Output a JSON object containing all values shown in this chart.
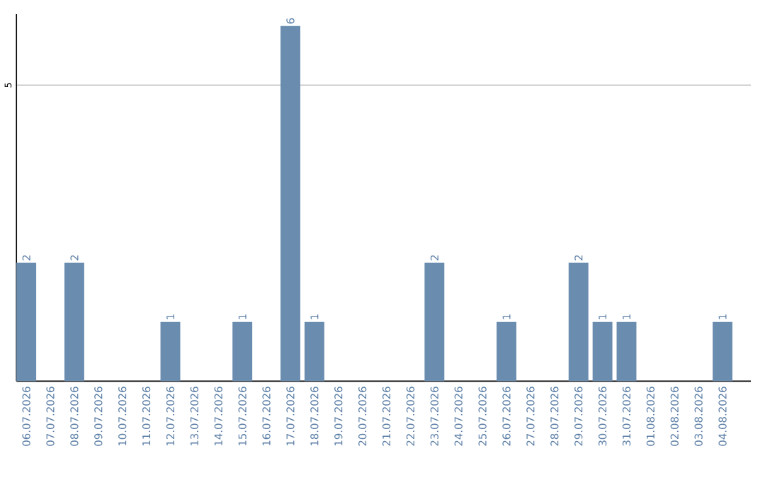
{
  "chart_data": {
    "type": "bar",
    "categories": [
      "06.07.2026",
      "07.07.2026",
      "08.07.2026",
      "09.07.2026",
      "10.07.2026",
      "11.07.2026",
      "12.07.2026",
      "13.07.2026",
      "14.07.2026",
      "15.07.2026",
      "16.07.2026",
      "17.07.2026",
      "18.07.2026",
      "19.07.2026",
      "20.07.2026",
      "21.07.2026",
      "22.07.2026",
      "23.07.2026",
      "24.07.2026",
      "25.07.2026",
      "26.07.2026",
      "27.07.2026",
      "28.07.2026",
      "29.07.2026",
      "30.07.2026",
      "31.07.2026",
      "01.08.2026",
      "02.08.2026",
      "03.08.2026",
      "04.08.2026"
    ],
    "values": [
      2,
      0,
      2,
      0,
      0,
      0,
      1,
      0,
      0,
      1,
      0,
      6,
      1,
      0,
      0,
      0,
      0,
      2,
      0,
      0,
      1,
      0,
      0,
      2,
      1,
      1,
      0,
      0,
      0,
      1
    ],
    "value_labels": [
      "2",
      null,
      "2",
      null,
      null,
      null,
      "1",
      null,
      null,
      "1",
      null,
      "6",
      "1",
      null,
      null,
      null,
      null,
      "2",
      null,
      null,
      "1",
      null,
      null,
      "2",
      "1",
      "1",
      null,
      null,
      null,
      "1"
    ],
    "color": "#6a8caf",
    "ylim": [
      0,
      6.2
    ],
    "yticks": [
      5
    ],
    "grid": "y"
  }
}
